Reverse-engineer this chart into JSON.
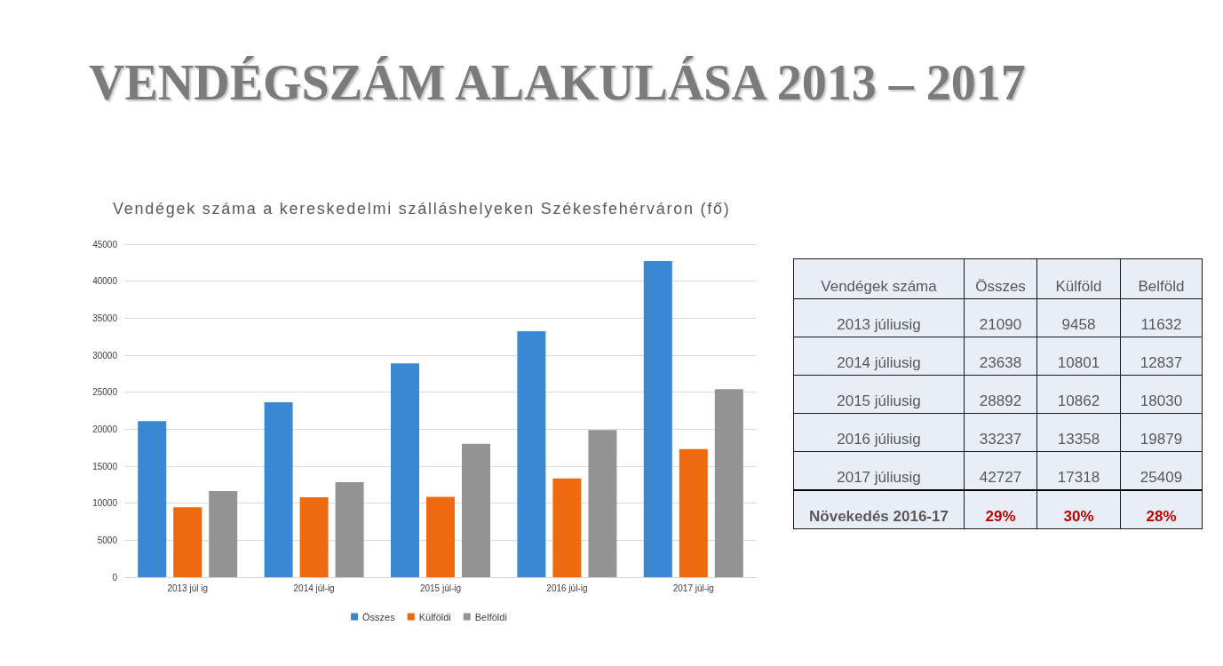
{
  "chart_data": [
    {
      "type": "bar",
      "title": "VENDÉGSZÁM ALAKULÁSA 2013 – 2017",
      "subtitle": "Vendégek száma a kereskedelmi szálláshelyeken Székesfehérváron (fő)",
      "categories": [
        "2013 júl ig",
        "2014 júl-ig",
        "2015 júl-ig",
        "2016 júl-ig",
        "2017 júl-ig"
      ],
      "series": [
        {
          "name": "Összes",
          "color": "#3a87d4",
          "values": [
            21090,
            23638,
            28892,
            33237,
            42727
          ]
        },
        {
          "name": "Külföldi",
          "color": "#ef6a0e",
          "values": [
            9458,
            10801,
            10862,
            13358,
            17318
          ]
        },
        {
          "name": "Belföldi",
          "color": "#939393",
          "values": [
            11632,
            12837,
            18030,
            19879,
            25409
          ]
        }
      ],
      "ylim": [
        0,
        45000
      ],
      "yticks": [
        0,
        5000,
        10000,
        15000,
        20000,
        25000,
        30000,
        35000,
        40000,
        45000
      ],
      "grid": "y",
      "legend": "bottom"
    },
    {
      "type": "other",
      "title": "Vendégek száma",
      "categories": [
        "2013 júliusig",
        "2014 júliusig",
        "2015 júliusig",
        "2016 júliusig",
        "2017 júliusig"
      ],
      "series": [
        {
          "name": "Összes",
          "values": [
            21090,
            23638,
            28892,
            33237,
            42727
          ]
        },
        {
          "name": "Külföld",
          "values": [
            9458,
            10801,
            10862,
            13358,
            17318
          ]
        },
        {
          "name": "Belföld",
          "values": [
            11632,
            12837,
            18030,
            19879,
            25409
          ]
        }
      ],
      "data_labels": true,
      "annotations": [
        "Növekedés 2016-17",
        "29%",
        "30%",
        "28%"
      ]
    }
  ]
}
